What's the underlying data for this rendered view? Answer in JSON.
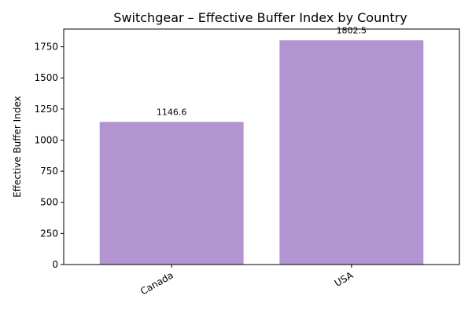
{
  "chart_data": {
    "type": "bar",
    "title": "Switchgear – Effective Buffer Index by Country",
    "xlabel": "",
    "ylabel": "Effective Buffer Index",
    "categories": [
      "Canada",
      "USA"
    ],
    "values": [
      1146.6,
      1802.5
    ],
    "data_labels": [
      "1146.6",
      "1802.5"
    ],
    "ylim": [
      0,
      1892.6
    ],
    "yticks": [
      0,
      250,
      500,
      750,
      1000,
      1250,
      1500,
      1750
    ],
    "bar_color": "#b294d0",
    "grid": false,
    "legend": "none"
  }
}
